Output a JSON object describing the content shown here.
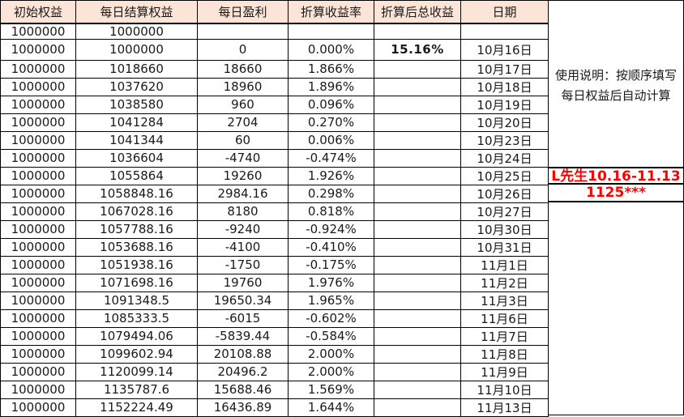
{
  "table": {
    "columns": [
      {
        "id": "initial-equity",
        "label": "初始权益"
      },
      {
        "id": "settled-equity",
        "label": "每日结算权益"
      },
      {
        "id": "daily-profit",
        "label": "每日盈利"
      },
      {
        "id": "return-rate",
        "label": "折算收益率"
      },
      {
        "id": "total-return",
        "label": "折算后总收益"
      },
      {
        "id": "date",
        "label": "日期"
      }
    ],
    "highlight_cell": {
      "row": 1,
      "col": 4
    },
    "rows": [
      [
        "1000000",
        "1000000",
        "",
        "",
        "",
        ""
      ],
      [
        "1000000",
        "1000000",
        "0",
        "0.000%",
        "15.16%",
        "10月16日"
      ],
      [
        "1000000",
        "1018660",
        "18660",
        "1.866%",
        "",
        "10月17日"
      ],
      [
        "1000000",
        "1037620",
        "18960",
        "1.896%",
        "",
        "10月18日"
      ],
      [
        "1000000",
        "1038580",
        "960",
        "0.096%",
        "",
        "10月19日"
      ],
      [
        "1000000",
        "1041284",
        "2704",
        "0.270%",
        "",
        "10月20日"
      ],
      [
        "1000000",
        "1041344",
        "60",
        "0.006%",
        "",
        "10月23日"
      ],
      [
        "1000000",
        "1036604",
        "-4740",
        "-0.474%",
        "",
        "10月24日"
      ],
      [
        "1000000",
        "1055864",
        "19260",
        "1.926%",
        "",
        "10月25日"
      ],
      [
        "1000000",
        "1058848.16",
        "2984.16",
        "0.298%",
        "",
        "10月26日"
      ],
      [
        "1000000",
        "1067028.16",
        "8180",
        "0.818%",
        "",
        "10月27日"
      ],
      [
        "1000000",
        "1057788.16",
        "-9240",
        "-0.924%",
        "",
        "10月30日"
      ],
      [
        "1000000",
        "1053688.16",
        "-4100",
        "-0.410%",
        "",
        "10月31日"
      ],
      [
        "1000000",
        "1051938.16",
        "-1750",
        "-0.175%",
        "",
        "11月1日"
      ],
      [
        "1000000",
        "1071698.16",
        "19760",
        "1.976%",
        "",
        "11月2日"
      ],
      [
        "1000000",
        "1091348.5",
        "19650.34",
        "1.965%",
        "",
        "11月3日"
      ],
      [
        "1000000",
        "1085333.5",
        "-6015",
        "-0.602%",
        "",
        "11月6日"
      ],
      [
        "1000000",
        "1079494.06",
        "-5839.44",
        "-0.584%",
        "",
        "11月7日"
      ],
      [
        "1000000",
        "1099602.94",
        "20108.88",
        "2.000%",
        "",
        "11月8日"
      ],
      [
        "1000000",
        "1120099.14",
        "20496.2",
        "2.000%",
        "",
        "11月9日"
      ],
      [
        "1000000",
        "1135787.6",
        "15688.46",
        "1.569%",
        "",
        "11月10日"
      ],
      [
        "1000000",
        "1152224.49",
        "16436.89",
        "1.644%",
        "",
        "11月13日"
      ]
    ]
  },
  "notes": {
    "instructions": "使用说明：按顺序填写每日权益后自动计算",
    "client_note": "L先生10.16-11.13",
    "account_note": "1125***"
  },
  "colors": {
    "header_bg": "#FCE4D6",
    "accent_red": "#FF0000",
    "border": "#000000"
  }
}
